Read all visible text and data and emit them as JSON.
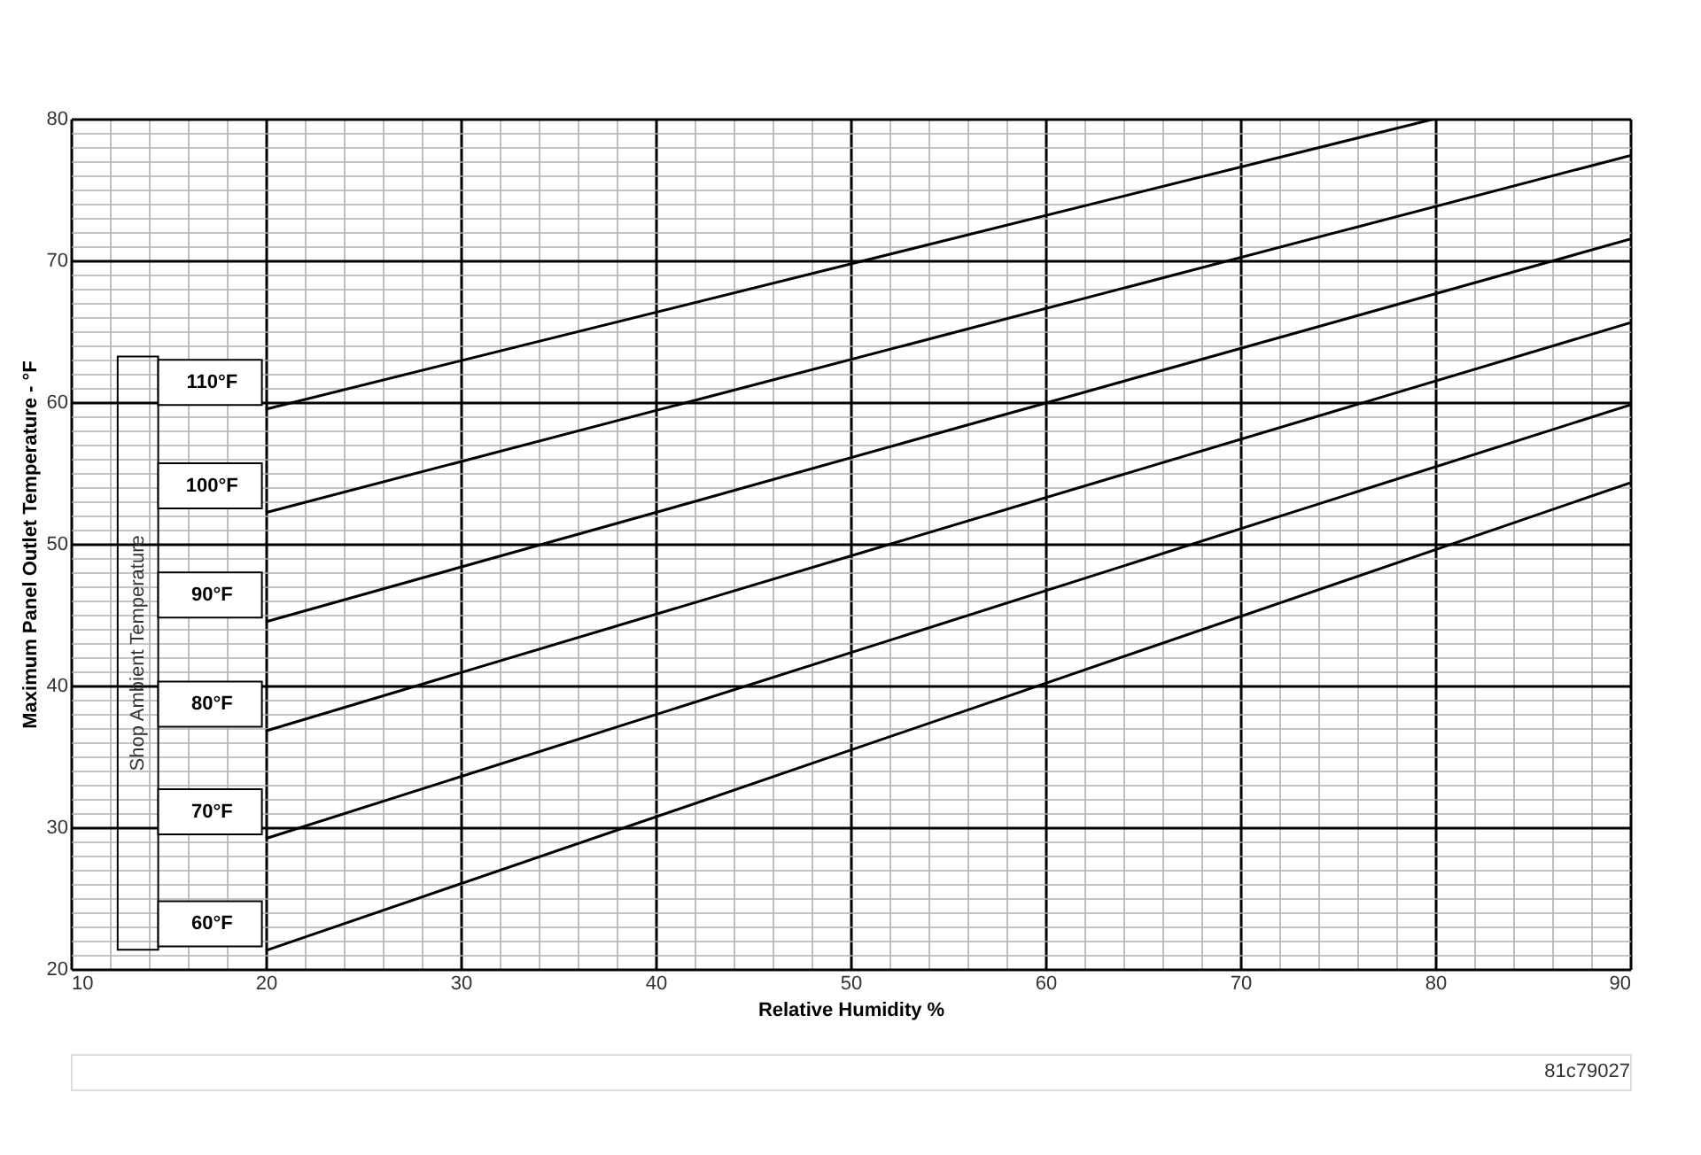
{
  "chart_data": {
    "type": "line",
    "xlabel": "Relative Humidity %",
    "ylabel": "Maximum Panel Outlet Temperature - °F",
    "legend_title": "Shop Ambient Temperature",
    "xlim": [
      10,
      90
    ],
    "ylim": [
      20,
      80
    ],
    "xticks": [
      10,
      {
        "value": 12,
        "label": null
      },
      {
        "value": 14,
        "label": null
      },
      {
        "value": 16,
        "label": null
      },
      {
        "value": 18,
        "label": null
      },
      20,
      {
        "value": 22,
        "label": null
      },
      {
        "value": 24,
        "label": null
      },
      {
        "value": 26,
        "label": null
      },
      {
        "value": 28,
        "label": null
      },
      30,
      {
        "value": 32,
        "label": null
      },
      {
        "value": 34,
        "label": null
      },
      {
        "value": 36,
        "label": null
      },
      {
        "value": 38,
        "label": null
      },
      40,
      {
        "value": 42,
        "label": null
      },
      {
        "value": 44,
        "label": null
      },
      {
        "value": 46,
        "label": null
      },
      {
        "value": 48,
        "label": null
      },
      50,
      {
        "value": 52,
        "label": null
      },
      {
        "value": 54,
        "label": null
      },
      {
        "value": 56,
        "label": null
      },
      {
        "value": 58,
        "label": null
      },
      60,
      {
        "value": 62,
        "label": null
      },
      {
        "value": 64,
        "label": null
      },
      {
        "value": 66,
        "label": null
      },
      {
        "value": 68,
        "label": null
      },
      70,
      {
        "value": 72,
        "label": null
      },
      {
        "value": 74,
        "label": null
      },
      {
        "value": 76,
        "label": null
      },
      {
        "value": 78,
        "label": null
      },
      80,
      {
        "value": 82,
        "label": null
      },
      {
        "value": 84,
        "label": null
      },
      {
        "value": 86,
        "label": null
      },
      {
        "value": 88,
        "label": null
      },
      90
    ],
    "yticks": [
      20,
      {
        "value": 21,
        "label": null
      },
      {
        "value": 22,
        "label": null
      },
      {
        "value": 23,
        "label": null
      },
      {
        "value": 24,
        "label": null
      },
      {
        "value": 25,
        "label": null
      },
      {
        "value": 26,
        "label": null
      },
      {
        "value": 27,
        "label": null
      },
      {
        "value": 28,
        "label": null
      },
      {
        "value": 29,
        "label": null
      },
      30,
      {
        "value": 31,
        "label": null
      },
      {
        "value": 32,
        "label": null
      },
      {
        "value": 33,
        "label": null
      },
      {
        "value": 34,
        "label": null
      },
      {
        "value": 35,
        "label": null
      },
      {
        "value": 36,
        "label": null
      },
      {
        "value": 37,
        "label": null
      },
      {
        "value": 38,
        "label": null
      },
      {
        "value": 39,
        "label": null
      },
      40,
      {
        "value": 41,
        "label": null
      },
      {
        "value": 42,
        "label": null
      },
      {
        "value": 43,
        "label": null
      },
      {
        "value": 44,
        "label": null
      },
      {
        "value": 45,
        "label": null
      },
      {
        "value": 46,
        "label": null
      },
      {
        "value": 47,
        "label": null
      },
      {
        "value": 48,
        "label": null
      },
      {
        "value": 49,
        "label": null
      },
      50,
      {
        "value": 51,
        "label": null
      },
      {
        "value": 52,
        "label": null
      },
      {
        "value": 53,
        "label": null
      },
      {
        "value": 54,
        "label": null
      },
      {
        "value": 55,
        "label": null
      },
      {
        "value": 56,
        "label": null
      },
      {
        "value": 57,
        "label": null
      },
      {
        "value": 58,
        "label": null
      },
      {
        "value": 59,
        "label": null
      },
      60,
      {
        "value": 61,
        "label": null
      },
      {
        "value": 62,
        "label": null
      },
      {
        "value": 63,
        "label": null
      },
      {
        "value": 64,
        "label": null
      },
      {
        "value": 65,
        "label": null
      },
      {
        "value": 66,
        "label": null
      },
      {
        "value": 67,
        "label": null
      },
      {
        "value": 68,
        "label": null
      },
      {
        "value": 69,
        "label": null
      },
      70,
      {
        "value": 71,
        "label": null
      },
      {
        "value": 72,
        "label": null
      },
      {
        "value": 73,
        "label": null
      },
      {
        "value": 74,
        "label": null
      },
      {
        "value": 75,
        "label": null
      },
      {
        "value": 76,
        "label": null
      },
      {
        "value": 77,
        "label": null
      },
      {
        "value": 78,
        "label": null
      },
      {
        "value": 79,
        "label": null
      },
      80
    ],
    "grid": true,
    "marker": "none",
    "line_style": "solid",
    "series": [
      {
        "name": "110°F",
        "color": "#000000",
        "x": [
          20,
          80
        ],
        "values": [
          59.5,
          80
        ]
      },
      {
        "name": "100°F",
        "color": "#000000",
        "x": [
          20,
          90
        ],
        "values": [
          52.2,
          77.4
        ]
      },
      {
        "name": "90°F",
        "color": "#000000",
        "x": [
          20,
          90
        ],
        "values": [
          44.5,
          71.5
        ]
      },
      {
        "name": "80°F",
        "color": "#000000",
        "x": [
          20,
          90
        ],
        "values": [
          36.8,
          65.6
        ]
      },
      {
        "name": "70°F",
        "color": "#000000",
        "x": [
          20,
          90
        ],
        "values": [
          29.2,
          59.8
        ]
      },
      {
        "name": "60°F",
        "color": "#000000",
        "x": [
          20,
          90
        ],
        "values": [
          21.3,
          54.3
        ]
      }
    ],
    "annotations": [
      "81c79027"
    ]
  }
}
